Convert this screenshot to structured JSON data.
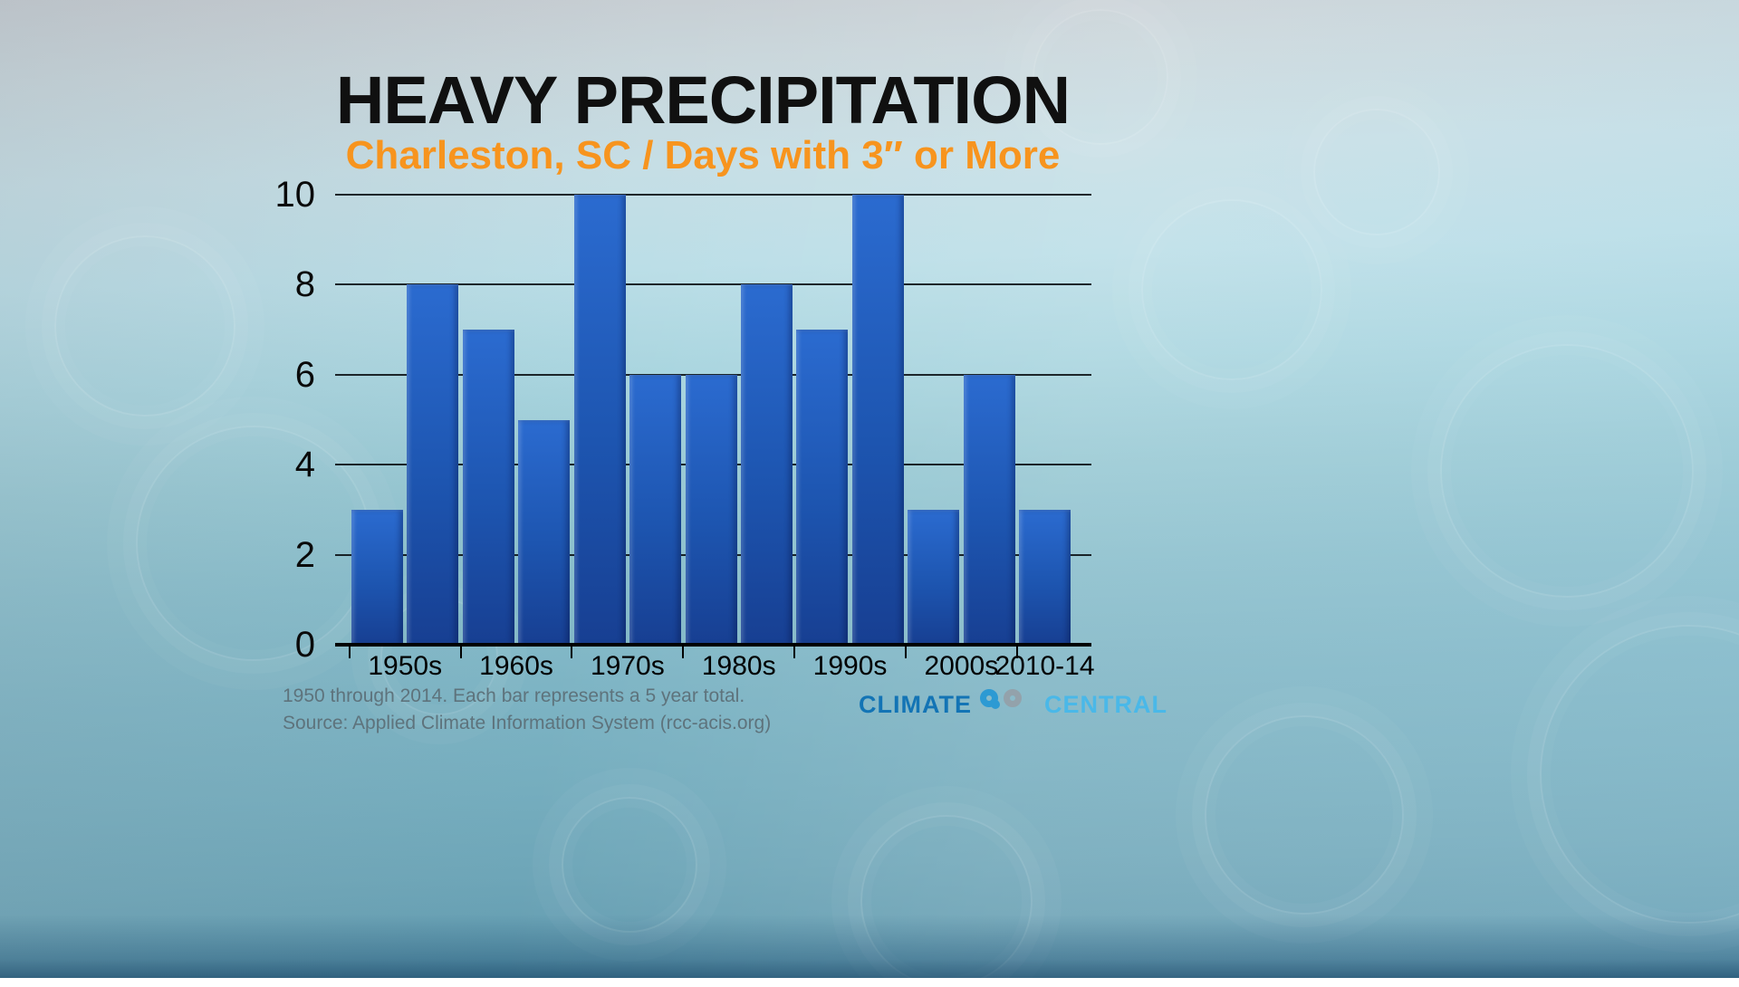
{
  "title": "HEAVY PRECIPITATION",
  "subtitle": "Charleston, SC / Days with 3″ or More",
  "chart_data": {
    "type": "bar",
    "title": "HEAVY PRECIPITATION",
    "subtitle": "Charleston, SC / Days with 3″ or More",
    "values": [
      3,
      8,
      7,
      5,
      10,
      6,
      6,
      8,
      7,
      10,
      3,
      6,
      3
    ],
    "groups": [
      {
        "label": "1950s",
        "bars": 2
      },
      {
        "label": "1960s",
        "bars": 2
      },
      {
        "label": "1970s",
        "bars": 2
      },
      {
        "label": "1980s",
        "bars": 2
      },
      {
        "label": "1990s",
        "bars": 2
      },
      {
        "label": "2000s",
        "bars": 2
      },
      {
        "label": "2010-14",
        "bars": 1
      }
    ],
    "yticks": [
      0,
      2,
      4,
      6,
      8,
      10
    ],
    "ylim": [
      0,
      10
    ],
    "xlabel": "",
    "ylabel": "",
    "grid": true,
    "legend": false,
    "bar_unit": "days per 5-year period"
  },
  "colors": {
    "bar_top": "#2b6bd0",
    "bar_mid": "#1d55b0",
    "bar_bottom": "#173f92",
    "subtitle_orange": "#f7941e",
    "logo_blue": "#1374b5",
    "logo_light_blue": "#4ab8e8",
    "logo_gray": "#93a2ab"
  },
  "footnotes": {
    "line1": "1950 through 2014. Each bar represents a 5 year total.",
    "line2": "Source: Applied Climate Information System (rcc-acis.org)"
  },
  "logo": {
    "left_word": "CLIMATE",
    "right_word": "CENTRAL"
  }
}
